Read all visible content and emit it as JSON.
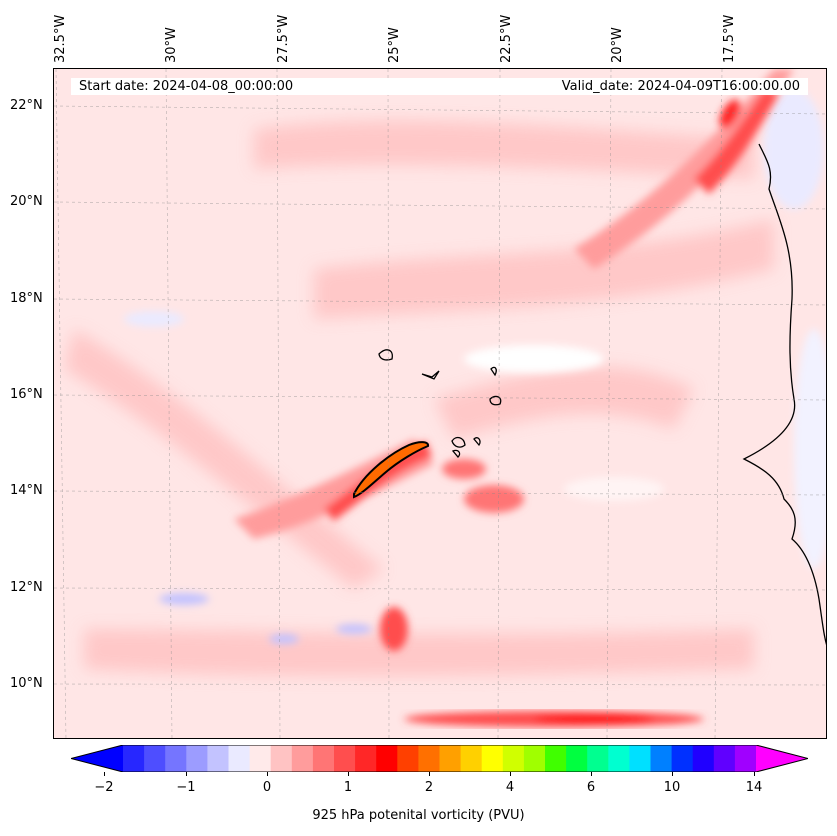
{
  "header": {
    "start_date": "Start date: 2024-04-08_00:00:00",
    "valid_date": "Valid_date: 2024-04-09T16:00:00.00"
  },
  "axes": {
    "longitudes": [
      "32.5°W",
      "30°W",
      "27.5°W",
      "25°W",
      "22.5°W",
      "20°W",
      "17.5°W"
    ],
    "latitudes": [
      "22°N",
      "20°N",
      "18°N",
      "16°N",
      "14°N",
      "12°N",
      "10°N"
    ]
  },
  "colorbar": {
    "label": "925 hPa potenital vorticity (PVU)",
    "ticks": [
      "−2",
      "−1",
      "0",
      "1",
      "2",
      "4",
      "6",
      "10",
      "14"
    ],
    "colors": [
      "#0000ff",
      "#2727ff",
      "#4e4eff",
      "#7575ff",
      "#9c9cff",
      "#c3c3ff",
      "#eaeaff",
      "#ffeaea",
      "#ffc3c3",
      "#ff9c9c",
      "#ff7575",
      "#ff4e4e",
      "#ff2727",
      "#ff0000",
      "#ff4000",
      "#ff7000",
      "#ffa000",
      "#ffd000",
      "#ffff00",
      "#d0ff00",
      "#a0ff00",
      "#40ff00",
      "#00ff40",
      "#00ff90",
      "#00ffd0",
      "#00e0ff",
      "#0080ff",
      "#0030ff",
      "#2000ff",
      "#6000ff",
      "#a000ff",
      "#ff00ff"
    ]
  }
}
